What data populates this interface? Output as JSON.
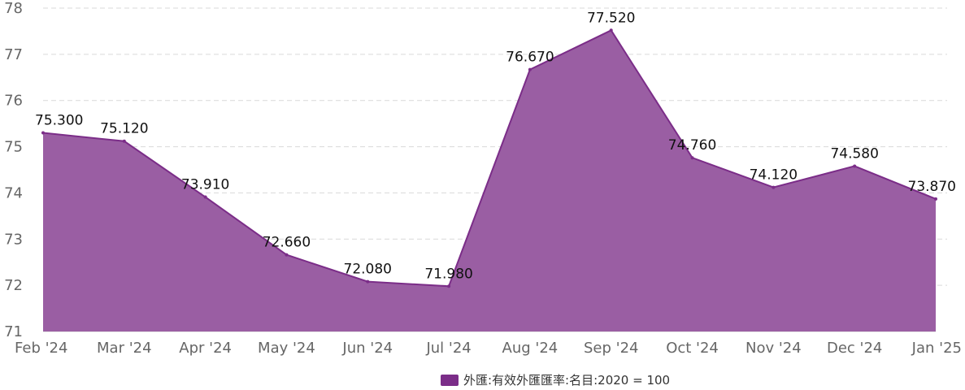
{
  "chart_data": {
    "type": "area",
    "categories": [
      "Feb '24",
      "Mar '24",
      "Apr '24",
      "May '24",
      "Jun '24",
      "Jul '24",
      "Aug '24",
      "Sep '24",
      "Oct '24",
      "Nov '24",
      "Dec '24",
      "Jan '25"
    ],
    "series": [
      {
        "name": "外匯:有效外匯匯率:名目:2020 = 100",
        "values": [
          75.3,
          75.12,
          73.91,
          72.66,
          72.08,
          71.98,
          76.67,
          77.52,
          74.76,
          74.12,
          74.58,
          73.87
        ],
        "data_labels": [
          "75.300",
          "75.120",
          "73.910",
          "72.660",
          "72.080",
          "71.980",
          "76.670",
          "77.520",
          "74.760",
          "74.120",
          "74.580",
          "73.870"
        ],
        "color": "#7b2d88",
        "fill_color": "#9a5ea3"
      }
    ],
    "y_ticks": [
      "71",
      "72",
      "73",
      "74",
      "75",
      "76",
      "77",
      "78"
    ],
    "ylim": [
      71,
      78
    ],
    "grid": true,
    "legend_position": "bottom-center",
    "title": "",
    "xlabel": "",
    "ylabel": ""
  },
  "legend": {
    "label": "外匯:有效外匯匯率:名目:2020 = 100"
  }
}
